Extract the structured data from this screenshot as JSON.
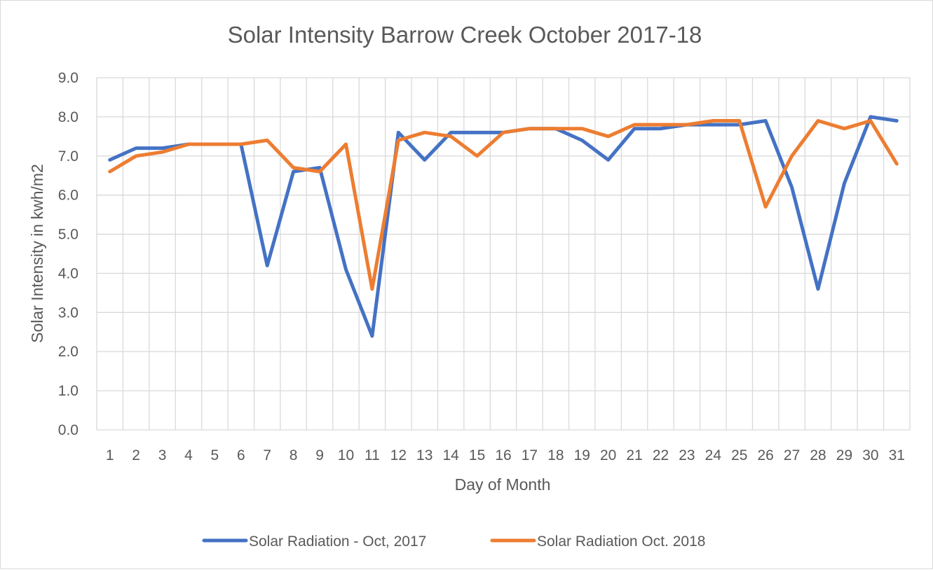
{
  "chart_data": {
    "type": "line",
    "title": "Solar Intensity Barrow Creek October 2017-18",
    "xlabel": "Day of Month",
    "ylabel": "Solar Intensity in kwh/m2",
    "ylim": [
      0,
      9
    ],
    "yticks": [
      "0.0",
      "1.0",
      "2.0",
      "3.0",
      "4.0",
      "5.0",
      "6.0",
      "7.0",
      "8.0",
      "9.0"
    ],
    "categories": [
      "1",
      "2",
      "3",
      "4",
      "5",
      "6",
      "7",
      "8",
      "9",
      "10",
      "11",
      "12",
      "13",
      "14",
      "15",
      "16",
      "17",
      "18",
      "19",
      "20",
      "21",
      "22",
      "23",
      "24",
      "25",
      "26",
      "27",
      "28",
      "29",
      "30",
      "31"
    ],
    "grid": true,
    "legend_position": "bottom",
    "series": [
      {
        "name": "Solar Radiation - Oct, 2017",
        "color": "#4472c4",
        "values": [
          6.9,
          7.2,
          7.2,
          7.3,
          7.3,
          7.3,
          4.2,
          6.6,
          6.7,
          4.1,
          2.4,
          7.6,
          6.9,
          7.6,
          7.6,
          7.6,
          7.7,
          7.7,
          7.4,
          6.9,
          7.7,
          7.7,
          7.8,
          7.8,
          7.8,
          7.9,
          6.2,
          3.6,
          6.3,
          8.0,
          7.9
        ]
      },
      {
        "name": "Solar Radiation Oct. 2018",
        "color": "#ed7d31",
        "values": [
          6.6,
          7.0,
          7.1,
          7.3,
          7.3,
          7.3,
          7.4,
          6.7,
          6.6,
          7.3,
          3.6,
          7.4,
          7.6,
          7.5,
          7.0,
          7.6,
          7.7,
          7.7,
          7.7,
          7.5,
          7.8,
          7.8,
          7.8,
          7.9,
          7.9,
          5.7,
          7.0,
          7.9,
          7.7,
          7.9,
          6.8
        ]
      }
    ]
  }
}
